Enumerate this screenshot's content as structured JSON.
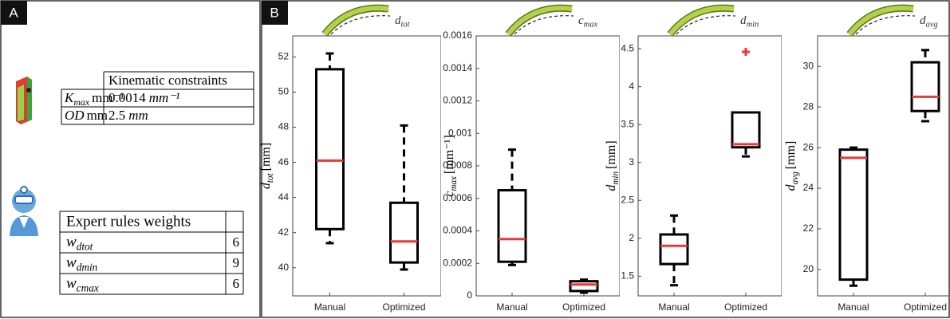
{
  "panel_a": {
    "label": "A",
    "kinematic_table": {
      "header": "Kinematic constraints",
      "rows": [
        {
          "symbol": "K",
          "subscript": "max",
          "value": "0.0014",
          "unit": "mm⁻¹"
        },
        {
          "symbol": "OD",
          "value": "2.5",
          "unit": "mm"
        }
      ]
    },
    "weights_table": {
      "header": "Expert rules weights",
      "rows": [
        {
          "symbol": "w",
          "subscript": "dtot",
          "value": 6
        },
        {
          "symbol": "w",
          "subscript": "dmin",
          "value": 9
        },
        {
          "symbol": "w",
          "subscript": "cmax",
          "value": 6
        }
      ]
    }
  },
  "panel_b": {
    "label": "B"
  },
  "chart_data": [
    {
      "type": "box",
      "icon_label": {
        "symbol": "d",
        "subscript": "tot"
      },
      "ylabel": {
        "symbol": "d",
        "subscript": "tot",
        "unit": "[mm]"
      },
      "categories": [
        "Manual",
        "Optimized"
      ],
      "ylim": [
        38.4,
        53.2
      ],
      "yticks": [
        40,
        42,
        44,
        46,
        48,
        50,
        52
      ],
      "box_color": "#000000",
      "median_color": "#e8393a",
      "boxes": [
        {
          "whisker_low": 41.4,
          "q1": 42.2,
          "median": 46.1,
          "q3": 51.3,
          "whisker_high": 52.2,
          "outliers": []
        },
        {
          "whisker_low": 39.9,
          "q1": 40.3,
          "median": 41.5,
          "q3": 43.7,
          "whisker_high": 48.1,
          "outliers": []
        }
      ]
    },
    {
      "type": "box",
      "icon_label": {
        "symbol": "c",
        "subscript": "max"
      },
      "ylabel": {
        "symbol": "c",
        "subscript": "max",
        "unit": "[mm⁻¹]"
      },
      "categories": [
        "Manual",
        "Optimized"
      ],
      "ylim": [
        0,
        0.0016
      ],
      "yticks": [
        0,
        0.0002,
        0.0004,
        0.0006,
        0.0008,
        0.001,
        0.0012,
        0.0014,
        0.0016
      ],
      "box_color": "#000000",
      "median_color": "#e8393a",
      "boxes": [
        {
          "whisker_low": 0.00019,
          "q1": 0.00021,
          "median": 0.00035,
          "q3": 0.00065,
          "whisker_high": 0.0009,
          "outliers": []
        },
        {
          "whisker_low": 2e-05,
          "q1": 3e-05,
          "median": 7e-05,
          "q3": 9e-05,
          "whisker_high": 0.0001,
          "outliers": []
        }
      ]
    },
    {
      "type": "box",
      "icon_label": {
        "symbol": "d",
        "subscript": "min"
      },
      "ylabel": {
        "symbol": "d",
        "subscript": "min",
        "unit": "[mm]"
      },
      "categories": [
        "Manual",
        "Optimized"
      ],
      "ylim": [
        1.24,
        4.67
      ],
      "yticks": [
        1.5,
        2,
        2.5,
        3,
        3.5,
        4,
        4.5
      ],
      "box_color": "#000000",
      "median_color": "#e8393a",
      "boxes": [
        {
          "whisker_low": 1.38,
          "q1": 1.66,
          "median": 1.9,
          "q3": 2.05,
          "whisker_high": 2.3,
          "outliers": []
        },
        {
          "whisker_low": 3.08,
          "q1": 3.2,
          "median": 3.24,
          "q3": 3.66,
          "whisker_high": 3.66,
          "outliers": [
            4.46
          ]
        }
      ]
    },
    {
      "type": "box",
      "icon_label": {
        "symbol": "d",
        "subscript": "avg"
      },
      "ylabel": {
        "symbol": "d",
        "subscript": "avg",
        "unit": "[mm]"
      },
      "categories": [
        "Manual",
        "Optimized"
      ],
      "ylim": [
        18.7,
        31.5
      ],
      "yticks": [
        20,
        22,
        24,
        26,
        28,
        30
      ],
      "box_color": "#000000",
      "median_color": "#e8393a",
      "boxes": [
        {
          "whisker_low": 19.2,
          "q1": 19.5,
          "median": 25.5,
          "q3": 25.9,
          "whisker_high": 26.0,
          "outliers": []
        },
        {
          "whisker_low": 27.3,
          "q1": 27.8,
          "median": 28.5,
          "q3": 30.2,
          "whisker_high": 30.8,
          "outliers": []
        }
      ]
    }
  ]
}
